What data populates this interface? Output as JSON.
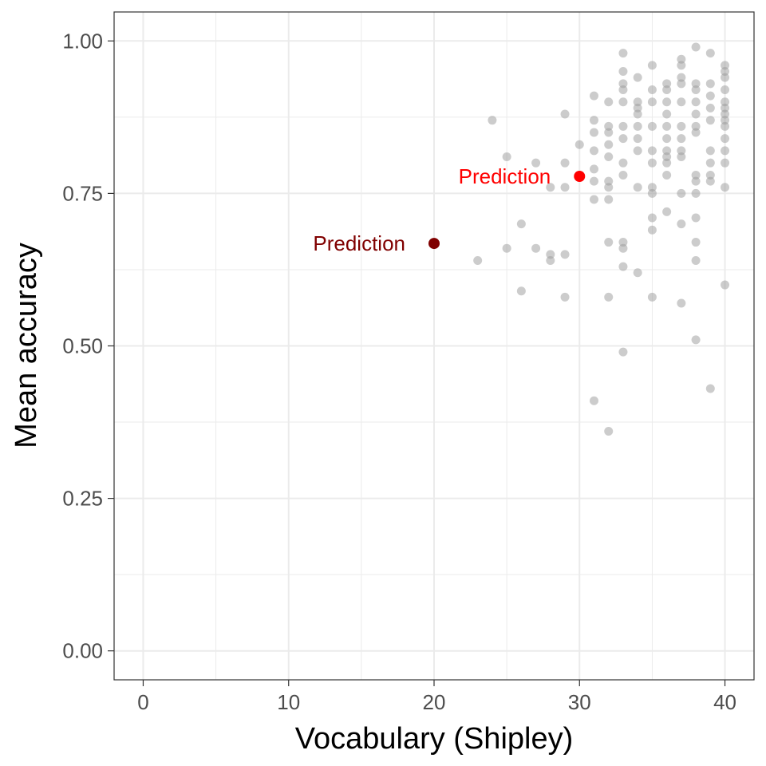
{
  "chart_data": {
    "type": "scatter",
    "title": "",
    "xlabel": "Vocabulary (Shipley)",
    "ylabel": "Mean accuracy",
    "xlim": [
      -2,
      42
    ],
    "ylim": [
      -0.0475,
      1.0475
    ],
    "x_ticks": [
      0,
      10,
      20,
      30,
      40
    ],
    "x_tick_labels": [
      "0",
      "10",
      "20",
      "30",
      "40"
    ],
    "y_ticks": [
      0,
      0.25,
      0.5,
      0.75,
      1.0
    ],
    "y_tick_labels": [
      "0.00",
      "0.25",
      "0.50",
      "0.75",
      "1.00"
    ],
    "grid": true,
    "legend": "none",
    "colors": {
      "points": "#999999",
      "prediction_20": "#800000",
      "prediction_30": "#ff0000",
      "grid": "#ebebeb",
      "border": "#333333"
    },
    "series": [
      {
        "points": [
          [
            24,
            0.87
          ],
          [
            25,
            0.81
          ],
          [
            25,
            0.66
          ],
          [
            26,
            0.7
          ],
          [
            26,
            0.59
          ],
          [
            23,
            0.64
          ],
          [
            27,
            0.8
          ],
          [
            27,
            0.66
          ],
          [
            28,
            0.76
          ],
          [
            28,
            0.65
          ],
          [
            28,
            0.64
          ],
          [
            29,
            0.88
          ],
          [
            29,
            0.8
          ],
          [
            29,
            0.76
          ],
          [
            29,
            0.65
          ],
          [
            29,
            0.58
          ],
          [
            30,
            0.83
          ],
          [
            31,
            0.91
          ],
          [
            31,
            0.87
          ],
          [
            31,
            0.85
          ],
          [
            31,
            0.82
          ],
          [
            31,
            0.79
          ],
          [
            31,
            0.77
          ],
          [
            31,
            0.74
          ],
          [
            31,
            0.41
          ],
          [
            32,
            0.9
          ],
          [
            32,
            0.86
          ],
          [
            32,
            0.85
          ],
          [
            32,
            0.83
          ],
          [
            32,
            0.81
          ],
          [
            32,
            0.77
          ],
          [
            32,
            0.76
          ],
          [
            32,
            0.74
          ],
          [
            32,
            0.67
          ],
          [
            32,
            0.58
          ],
          [
            32,
            0.36
          ],
          [
            33,
            0.98
          ],
          [
            33,
            0.95
          ],
          [
            33,
            0.93
          ],
          [
            33,
            0.92
          ],
          [
            33,
            0.9
          ],
          [
            33,
            0.86
          ],
          [
            33,
            0.84
          ],
          [
            33,
            0.8
          ],
          [
            33,
            0.78
          ],
          [
            33,
            0.67
          ],
          [
            33,
            0.66
          ],
          [
            33,
            0.63
          ],
          [
            33,
            0.49
          ],
          [
            34,
            0.94
          ],
          [
            34,
            0.9
          ],
          [
            34,
            0.89
          ],
          [
            34,
            0.88
          ],
          [
            34,
            0.86
          ],
          [
            34,
            0.84
          ],
          [
            34,
            0.82
          ],
          [
            34,
            0.76
          ],
          [
            34,
            0.62
          ],
          [
            35,
            0.96
          ],
          [
            35,
            0.92
          ],
          [
            35,
            0.9
          ],
          [
            35,
            0.86
          ],
          [
            35,
            0.82
          ],
          [
            35,
            0.8
          ],
          [
            35,
            0.76
          ],
          [
            35,
            0.75
          ],
          [
            35,
            0.71
          ],
          [
            35,
            0.69
          ],
          [
            35,
            0.58
          ],
          [
            36,
            0.93
          ],
          [
            36,
            0.92
          ],
          [
            36,
            0.9
          ],
          [
            36,
            0.88
          ],
          [
            36,
            0.86
          ],
          [
            36,
            0.84
          ],
          [
            36,
            0.82
          ],
          [
            36,
            0.81
          ],
          [
            36,
            0.8
          ],
          [
            36,
            0.78
          ],
          [
            36,
            0.72
          ],
          [
            37,
            0.97
          ],
          [
            37,
            0.96
          ],
          [
            37,
            0.94
          ],
          [
            37,
            0.93
          ],
          [
            37,
            0.9
          ],
          [
            37,
            0.86
          ],
          [
            37,
            0.84
          ],
          [
            37,
            0.82
          ],
          [
            37,
            0.81
          ],
          [
            37,
            0.75
          ],
          [
            37,
            0.7
          ],
          [
            37,
            0.57
          ],
          [
            38,
            0.99
          ],
          [
            38,
            0.93
          ],
          [
            38,
            0.92
          ],
          [
            38,
            0.9
          ],
          [
            38,
            0.88
          ],
          [
            38,
            0.86
          ],
          [
            38,
            0.85
          ],
          [
            38,
            0.78
          ],
          [
            38,
            0.77
          ],
          [
            38,
            0.75
          ],
          [
            38,
            0.71
          ],
          [
            38,
            0.67
          ],
          [
            38,
            0.64
          ],
          [
            38,
            0.51
          ],
          [
            39,
            0.98
          ],
          [
            39,
            0.93
          ],
          [
            39,
            0.91
          ],
          [
            39,
            0.89
          ],
          [
            39,
            0.87
          ],
          [
            39,
            0.82
          ],
          [
            39,
            0.8
          ],
          [
            39,
            0.78
          ],
          [
            39,
            0.77
          ],
          [
            39,
            0.43
          ],
          [
            40,
            0.96
          ],
          [
            40,
            0.95
          ],
          [
            40,
            0.94
          ],
          [
            40,
            0.92
          ],
          [
            40,
            0.9
          ],
          [
            40,
            0.89
          ],
          [
            40,
            0.88
          ],
          [
            40,
            0.87
          ],
          [
            40,
            0.86
          ],
          [
            40,
            0.84
          ],
          [
            40,
            0.82
          ],
          [
            40,
            0.8
          ],
          [
            40,
            0.76
          ],
          [
            40,
            0.6
          ]
        ]
      }
    ],
    "annotations": [
      {
        "text": "Prediction",
        "x": 20,
        "y": 0.668,
        "color": "#800000"
      },
      {
        "text": "Prediction",
        "x": 30,
        "y": 0.778,
        "color": "#ff0000"
      }
    ]
  }
}
